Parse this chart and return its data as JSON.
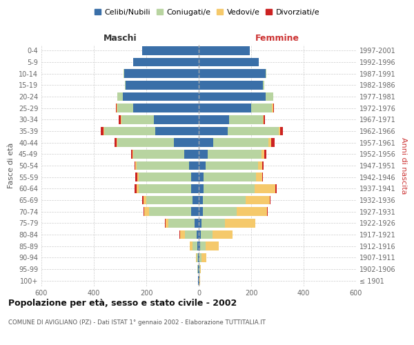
{
  "age_groups": [
    "100+",
    "95-99",
    "90-94",
    "85-89",
    "80-84",
    "75-79",
    "70-74",
    "65-69",
    "60-64",
    "55-59",
    "50-54",
    "45-49",
    "40-44",
    "35-39",
    "30-34",
    "25-29",
    "20-24",
    "15-19",
    "10-14",
    "5-9",
    "0-4"
  ],
  "birth_years": [
    "≤ 1901",
    "1902-1906",
    "1907-1911",
    "1912-1916",
    "1917-1921",
    "1922-1926",
    "1927-1931",
    "1932-1936",
    "1937-1941",
    "1942-1946",
    "1947-1951",
    "1952-1956",
    "1957-1961",
    "1962-1966",
    "1967-1971",
    "1972-1976",
    "1977-1981",
    "1982-1986",
    "1987-1991",
    "1992-1996",
    "1997-2001"
  ],
  "males": {
    "celibi": [
      2,
      2,
      3,
      5,
      8,
      15,
      30,
      25,
      28,
      28,
      38,
      55,
      95,
      165,
      170,
      250,
      290,
      280,
      285,
      250,
      215
    ],
    "coniugati": [
      0,
      2,
      5,
      20,
      45,
      100,
      160,
      175,
      200,
      200,
      200,
      195,
      215,
      195,
      125,
      60,
      20,
      2,
      2,
      0,
      0
    ],
    "vedovi": [
      0,
      0,
      3,
      10,
      18,
      12,
      18,
      10,
      10,
      5,
      3,
      3,
      3,
      3,
      3,
      3,
      0,
      0,
      0,
      0,
      0
    ],
    "divorziati": [
      0,
      0,
      0,
      0,
      2,
      3,
      3,
      5,
      8,
      8,
      5,
      5,
      8,
      10,
      8,
      3,
      0,
      0,
      0,
      0,
      0
    ]
  },
  "females": {
    "nubili": [
      2,
      2,
      3,
      5,
      8,
      10,
      15,
      15,
      18,
      18,
      25,
      35,
      55,
      110,
      115,
      200,
      255,
      245,
      255,
      230,
      195
    ],
    "coniugate": [
      0,
      2,
      8,
      20,
      45,
      90,
      130,
      165,
      195,
      200,
      200,
      205,
      210,
      195,
      130,
      80,
      28,
      5,
      2,
      0,
      0
    ],
    "vedove": [
      2,
      5,
      18,
      50,
      75,
      115,
      115,
      90,
      80,
      25,
      18,
      10,
      10,
      5,
      3,
      3,
      0,
      0,
      0,
      0,
      0
    ],
    "divorziate": [
      0,
      0,
      0,
      2,
      2,
      2,
      2,
      3,
      5,
      3,
      5,
      8,
      15,
      12,
      5,
      3,
      0,
      0,
      0,
      0,
      0
    ]
  },
  "colors": {
    "celibi": "#3a6fa8",
    "coniugati": "#b8d4a0",
    "vedovi": "#f5c96b",
    "divorziati": "#cc2222"
  },
  "xlim": 600,
  "title": "Popolazione per età, sesso e stato civile - 2002",
  "subtitle": "COMUNE DI AVIGLIANO (PZ) - Dati ISTAT 1° gennaio 2002 - Elaborazione TUTTITALIA.IT",
  "ylabel_left": "Fasce di età",
  "ylabel_right": "Anni di nascita",
  "xlabel_left": "Maschi",
  "xlabel_right": "Femmine"
}
